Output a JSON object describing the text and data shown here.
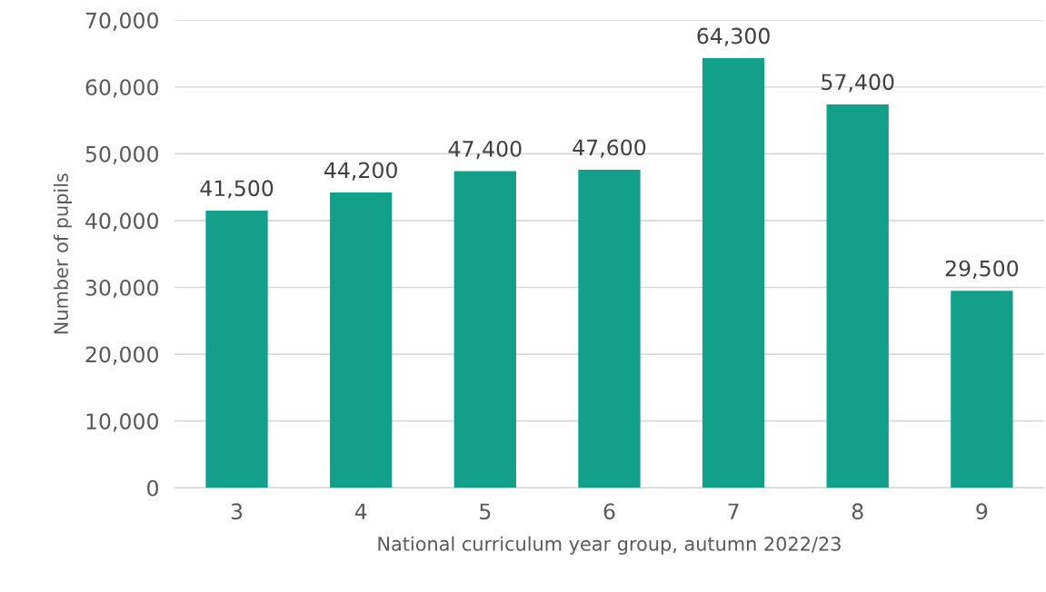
{
  "chart_data": {
    "type": "bar",
    "xlabel": "National curriculum year group, autumn 2022/23",
    "ylabel": "Number of pupils",
    "categories": [
      "3",
      "4",
      "5",
      "6",
      "7",
      "8",
      "9"
    ],
    "values": [
      41500,
      44200,
      47400,
      47600,
      64300,
      57400,
      29500
    ],
    "color": "#12a08a",
    "value_labels": [
      "41,500",
      "44,200",
      "47,400",
      "47,600",
      "64,300",
      "57,400",
      "29,500"
    ],
    "ylim": [
      0,
      70000
    ],
    "yticks": [
      {
        "value": 0,
        "label": "0"
      },
      {
        "value": 10000,
        "label": "10,000"
      },
      {
        "value": 20000,
        "label": "20,000"
      },
      {
        "value": 30000,
        "label": "30,000"
      },
      {
        "value": 40000,
        "label": "40,000"
      },
      {
        "value": 50000,
        "label": "50,000"
      },
      {
        "value": 60000,
        "label": "60,000"
      },
      {
        "value": 70000,
        "label": "70,000"
      }
    ],
    "grid": "y"
  }
}
